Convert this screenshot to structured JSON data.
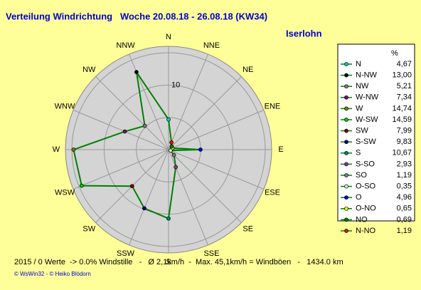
{
  "chart_data": {
    "type": "radar",
    "title": "Verteilung Windrichtung   Woche 20.08.18 - 26.08.18 (KW34)",
    "subtitle": "Iserlohn",
    "direction": "counterclockwise",
    "categories": [
      "N",
      "NNW",
      "NW",
      "WNW",
      "W",
      "WSW",
      "SW",
      "SSW",
      "S",
      "SSE",
      "SE",
      "ESE",
      "E",
      "ENE",
      "NE",
      "NNE"
    ],
    "rlim": [
      0,
      16
    ],
    "rings": [
      5,
      10,
      15
    ],
    "rticks": [
      10
    ],
    "legend_title": "%",
    "series": [
      {
        "color": "#008000",
        "names": [
          "N",
          "N-NW",
          "NW",
          "W-NW",
          "W",
          "W-SW",
          "SW",
          "S-SW",
          "S",
          "S-SO",
          "SO",
          "O-SO",
          "O",
          "O-NO",
          "NO",
          "N-NO"
        ],
        "values": [
          4.67,
          13.0,
          5.21,
          7.34,
          14.74,
          14.59,
          7.99,
          9.83,
          10.67,
          2.93,
          1.19,
          0.35,
          4.96,
          0.65,
          0.69,
          1.19
        ],
        "value_labels": [
          "4,67",
          "13,00",
          "5,21",
          "7,34",
          "14,74",
          "14,59",
          "7,99",
          "9,83",
          "10,67",
          "2,93",
          "1,19",
          "0,35",
          "4,96",
          "0,65",
          "0,69",
          "1,19"
        ],
        "marker_colors": [
          "#00cccc",
          "#000000",
          "#808080",
          "#800080",
          "#808000",
          "#00cc00",
          "#800000",
          "#000080",
          "#008080",
          "#993399",
          "#808080",
          "#ccffcc",
          "#0000ff",
          "#ffff00",
          "#008000",
          "#ff0000"
        ]
      }
    ],
    "footer": "2015 / 0 Werte  -> 0.0% Windstille   -   Ø 2,1km/h  -  Max. 45,1km/h = Windböen   -   1434.0 km",
    "credit": "© WsWin32  - © Heiko Blödorn"
  }
}
